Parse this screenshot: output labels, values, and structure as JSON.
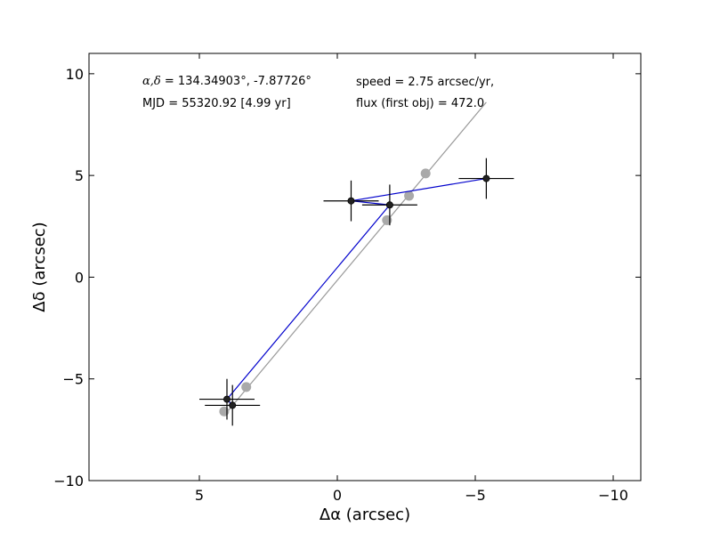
{
  "chart_data": {
    "type": "scatter",
    "xlabel": "Δα (arcsec)",
    "ylabel": "Δδ (arcsec)",
    "xlim": [
      9,
      -11
    ],
    "ylim": [
      -10,
      11
    ],
    "xticks": [
      5,
      0,
      -5,
      -10
    ],
    "yticks": [
      10,
      5,
      0,
      -5,
      -10
    ],
    "xtick_labels": [
      "5",
      "0",
      "−5",
      "−10"
    ],
    "ytick_labels": [
      "10",
      "5",
      "0",
      "−5",
      "−10"
    ],
    "grid": false,
    "annotations": {
      "coords_prefix": "α,δ",
      "coords_value": " = 134.34903°, -7.87726°",
      "mjd": "MJD = 55320.92 [4.99 yr]",
      "speed": "speed = 2.75 arcsec/yr,",
      "flux": "flux (first obj) = 472.0"
    },
    "series": [
      {
        "role": "motion-line",
        "color": "#999999",
        "x": [
          4.1,
          -5.4
        ],
        "y": [
          -6.8,
          8.6
        ]
      },
      {
        "role": "predicted",
        "color": "#a9a9a9",
        "x": [
          4.1,
          3.3,
          -1.8,
          -2.6,
          -3.2
        ],
        "y": [
          -6.6,
          -5.4,
          2.8,
          4.0,
          5.1
        ]
      },
      {
        "role": "observed",
        "color": "#0000cc",
        "marker_color": "#222222",
        "x": [
          -5.4,
          -0.5,
          -1.9,
          4.0,
          3.8
        ],
        "y": [
          4.85,
          3.75,
          3.55,
          -6.0,
          -6.3
        ],
        "xerr": [
          1.0,
          1.0,
          1.0,
          1.0,
          1.0
        ],
        "yerr": [
          1.0,
          1.0,
          1.0,
          1.0,
          1.0
        ]
      }
    ]
  }
}
